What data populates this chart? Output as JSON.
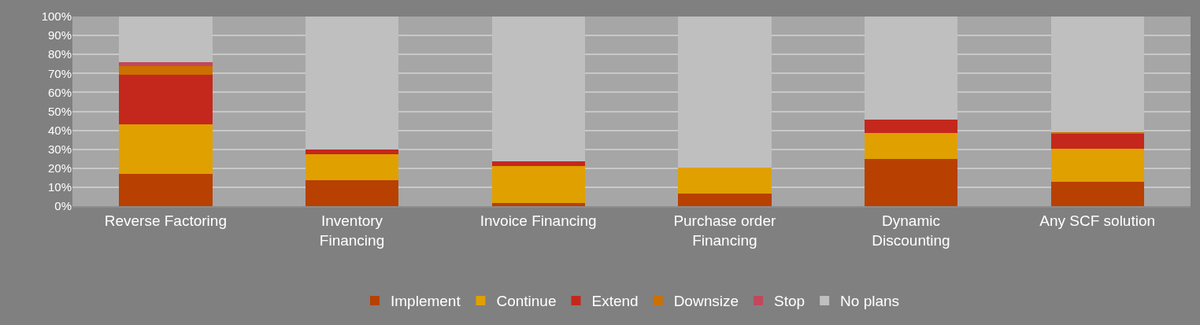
{
  "chart_data": {
    "type": "bar",
    "stacked": true,
    "categories": [
      "Reverse Factoring",
      "Inventory Financing",
      "Invoice Financing",
      "Purchase order Financing",
      "Dynamic Discounting",
      "Any SCF solution"
    ],
    "series": [
      {
        "name": "Implement",
        "color": "#b84000",
        "values": [
          17,
          13.5,
          1.5,
          6.5,
          25,
          13
        ]
      },
      {
        "name": "Continue",
        "color": "#e0a000",
        "values": [
          26,
          14,
          19.5,
          14,
          13.5,
          17.5
        ]
      },
      {
        "name": "Extend",
        "color": "#c4281c",
        "values": [
          26.5,
          2.5,
          2.5,
          0,
          7,
          7.5
        ]
      },
      {
        "name": "Downsize",
        "color": "#cc7000",
        "values": [
          4.5,
          0,
          0,
          0,
          0,
          1
        ]
      },
      {
        "name": "Stop",
        "color": "#c0485c",
        "values": [
          2,
          0,
          0,
          0,
          0,
          0
        ]
      },
      {
        "name": "No plans",
        "color": "#bfbfbf",
        "values": [
          24,
          70,
          76.5,
          79.5,
          54.5,
          61
        ]
      }
    ],
    "ylim": [
      0,
      100
    ],
    "yticks": [
      {
        "value": 0,
        "label": "0%"
      },
      {
        "value": 10,
        "label": "10%"
      },
      {
        "value": 20,
        "label": "20%"
      },
      {
        "value": 30,
        "label": "30%"
      },
      {
        "value": 40,
        "label": "40%"
      },
      {
        "value": 50,
        "label": "50%"
      },
      {
        "value": 60,
        "label": "60%"
      },
      {
        "value": 70,
        "label": "70%"
      },
      {
        "value": 80,
        "label": "80%"
      },
      {
        "value": 90,
        "label": "90%"
      },
      {
        "value": 100,
        "label": "100%"
      }
    ],
    "grid": "y",
    "legend": "bottom"
  }
}
